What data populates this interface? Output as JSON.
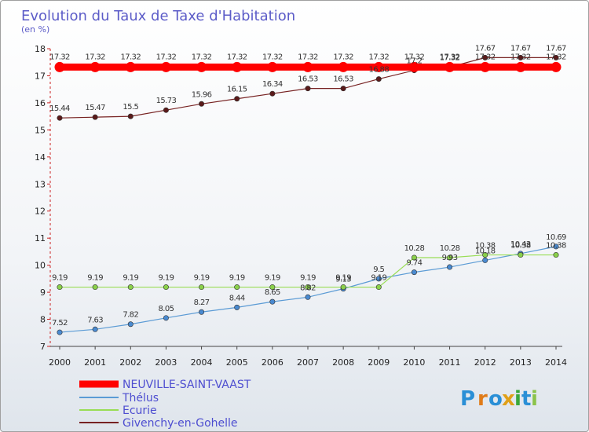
{
  "chart_data": {
    "type": "line",
    "title": "Evolution du Taux de Taxe d'Habitation",
    "subtitle": "(en %)",
    "x": [
      "2000",
      "2001",
      "2002",
      "2003",
      "2004",
      "2005",
      "2006",
      "2007",
      "2008",
      "2009",
      "2010",
      "2011",
      "2012",
      "2013",
      "2014"
    ],
    "y_ticks": [
      7,
      8,
      9,
      10,
      11,
      12,
      13,
      14,
      15,
      16,
      17,
      18
    ],
    "ylim": [
      7,
      18
    ],
    "grid": false,
    "legend_position": "bottom-left",
    "series": [
      {
        "name": "NEUVILLE-SAINT-VAAST",
        "color": "#ff0000",
        "values": [
          17.32,
          17.32,
          17.32,
          17.32,
          17.32,
          17.32,
          17.32,
          17.32,
          17.32,
          17.32,
          17.32,
          17.32,
          17.32,
          17.32,
          17.32
        ]
      },
      {
        "name": "Thélus",
        "color": "#5b9bd5",
        "values": [
          7.52,
          7.63,
          7.82,
          8.05,
          8.27,
          8.44,
          8.65,
          8.82,
          9.13,
          9.5,
          9.74,
          9.93,
          10.18,
          10.43,
          10.69
        ]
      },
      {
        "name": "Ecurie",
        "color": "#99dd55",
        "values": [
          9.19,
          9.19,
          9.19,
          9.19,
          9.19,
          9.19,
          9.19,
          9.19,
          9.19,
          9.19,
          10.28,
          10.28,
          10.38,
          10.38,
          10.38
        ]
      },
      {
        "name": "Givenchy-en-Gohelle",
        "color": "#772222",
        "values": [
          15.44,
          15.47,
          15.5,
          15.73,
          15.96,
          16.15,
          16.34,
          16.53,
          16.53,
          16.88,
          17.2,
          17.32,
          17.67,
          17.67,
          17.67
        ]
      }
    ]
  },
  "logo": {
    "text": "Proxiti",
    "letters": [
      "P",
      "r",
      "o",
      "x",
      "i",
      "t",
      "i"
    ],
    "colors": [
      "#2a8fd6",
      "#e07b18",
      "#2a8fd6",
      "#e0a018",
      "#3aa83a",
      "#2a8fd6",
      "#8bc34a"
    ]
  }
}
